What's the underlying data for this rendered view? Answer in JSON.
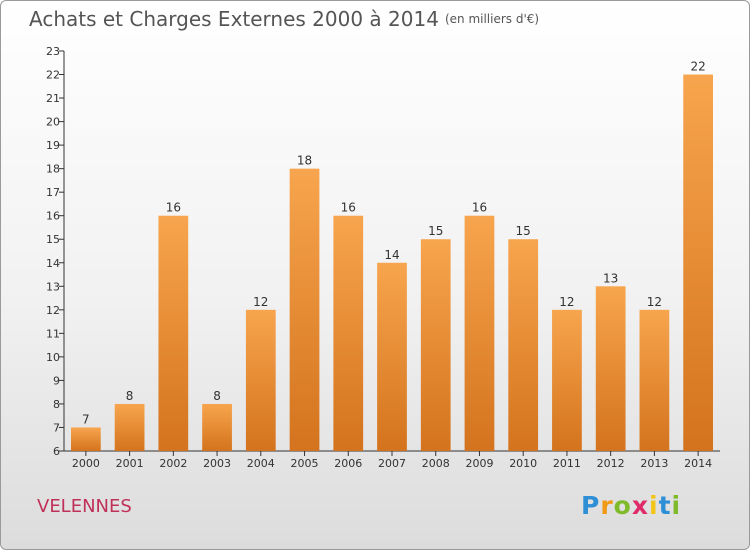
{
  "chart_data": {
    "type": "bar",
    "title": "Achats et Charges Externes 2000 à 2014",
    "subtitle": "(en milliers d'€)",
    "categories": [
      "2000",
      "2001",
      "2002",
      "2003",
      "2004",
      "2005",
      "2006",
      "2007",
      "2008",
      "2009",
      "2010",
      "2011",
      "2012",
      "2013",
      "2014"
    ],
    "values": [
      7,
      8,
      16,
      8,
      12,
      18,
      16,
      14,
      15,
      16,
      15,
      12,
      13,
      12,
      22
    ],
    "ylim": [
      6,
      23
    ],
    "yticks": [
      6,
      7,
      8,
      9,
      10,
      11,
      12,
      13,
      14,
      15,
      16,
      17,
      18,
      19,
      20,
      21,
      22,
      23
    ],
    "grid": false,
    "xlabel": "",
    "ylabel": "",
    "colors": {
      "bar_light": "#f7a54e",
      "bar_dark": "#d4731d",
      "title": "#555555",
      "place": "#c0315a"
    }
  },
  "place_name": "VELENNES",
  "logo": {
    "letters": [
      "P",
      "r",
      "o",
      "x",
      "i",
      "t",
      "i"
    ],
    "colors": [
      "#2f8fd6",
      "#f29a16",
      "#7fba2a",
      "#e02b6a",
      "#f2c618",
      "#2f8fd6",
      "#7fba2a"
    ]
  }
}
